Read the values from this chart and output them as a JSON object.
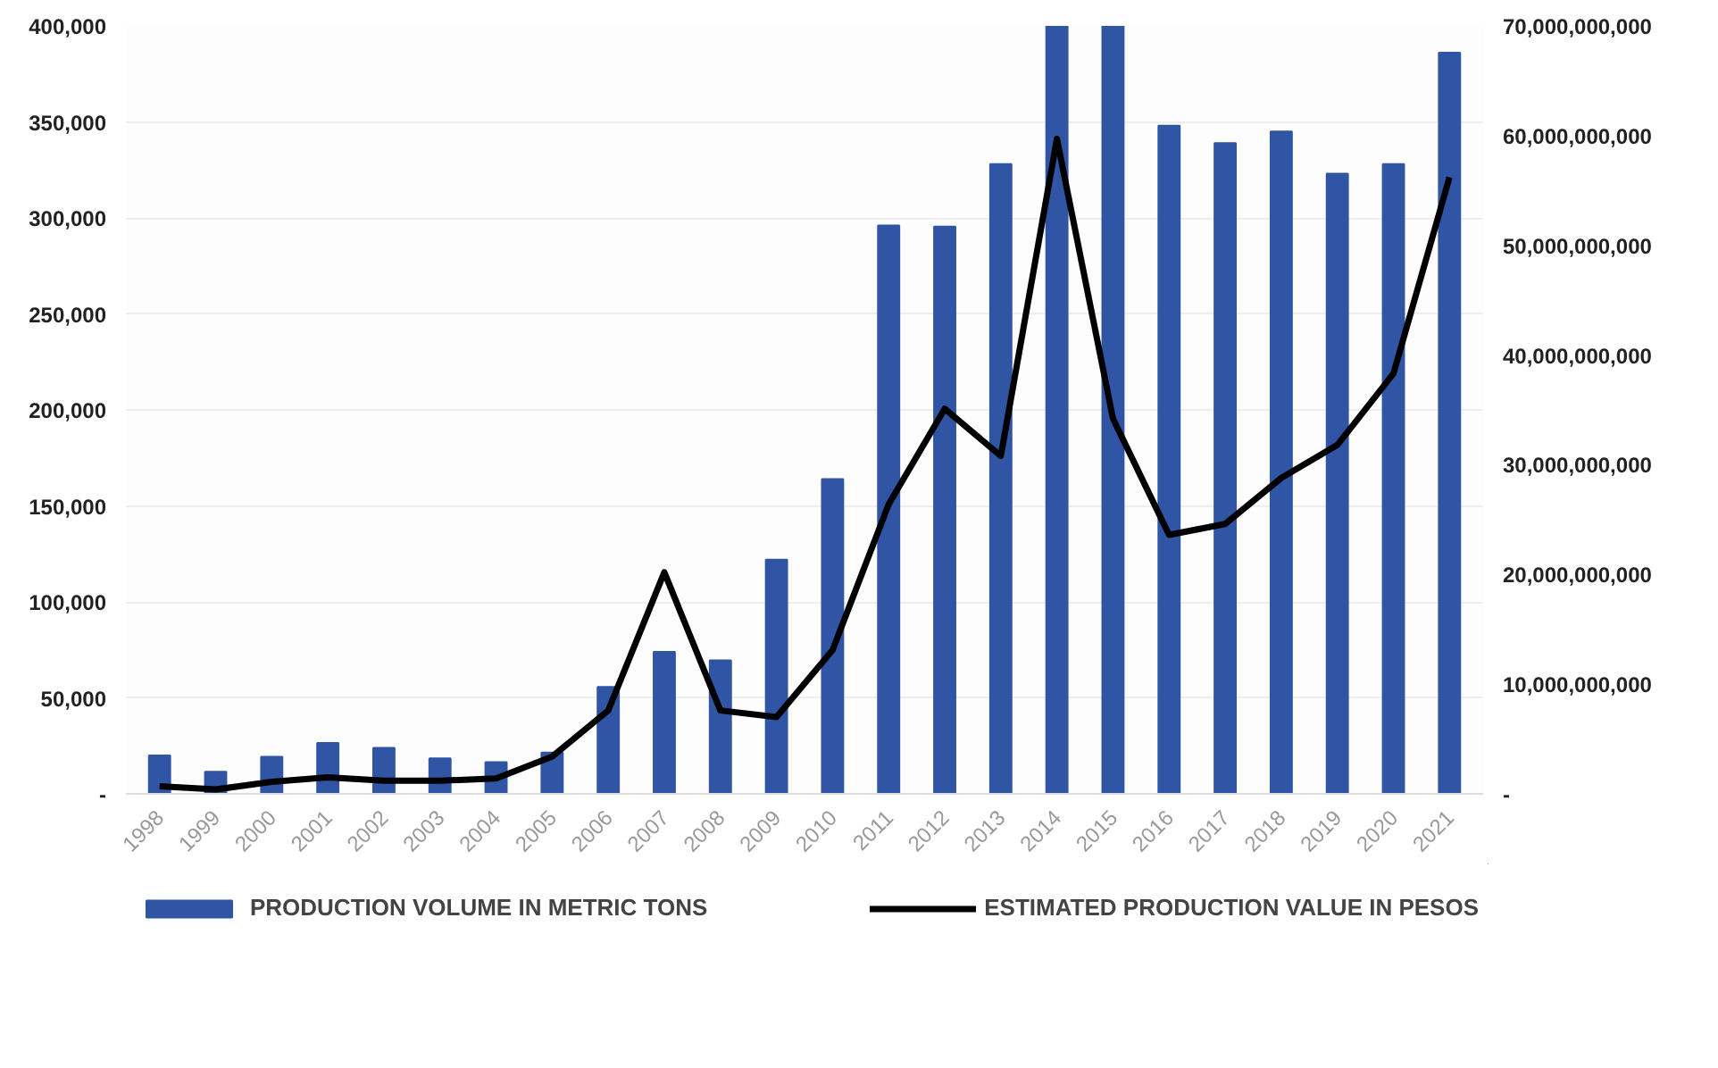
{
  "chart_data": {
    "type": "bar",
    "categories": [
      "1998",
      "1999",
      "2000",
      "2001",
      "2002",
      "2003",
      "2004",
      "2005",
      "2006",
      "2007",
      "2008",
      "2009",
      "2010",
      "2011",
      "2012",
      "2013",
      "2014",
      "2015",
      "2016",
      "2017",
      "2018",
      "2019",
      "2020",
      "2021"
    ],
    "series": [
      {
        "name": "PRODUCTION VOLUME IN METRIC TONS",
        "color": "#2f55a4",
        "values": [
          20000,
          11500,
          19300,
          26500,
          24000,
          18500,
          16500,
          21500,
          55700,
          73900,
          69500,
          122000,
          164000,
          296000,
          295500,
          328000,
          400000,
          400000,
          348000,
          339000,
          345000,
          323000,
          328000,
          386000
        ]
      },
      {
        "name": "ESTIMATED PRODUCTION VALUE IN PESOS",
        "type": "line",
        "axis": "y2",
        "color": "#000000",
        "values": [
          700000000,
          400000000,
          1100000000,
          1500000000,
          1200000000,
          1200000000,
          1400000000,
          3400000000,
          7600000000,
          20200000000,
          7600000000,
          7000000000,
          13100000000,
          26400000000,
          35100000000,
          30800000000,
          59700000000,
          34200000000,
          23600000000,
          24600000000,
          28800000000,
          31800000000,
          38300000000,
          56200000000
        ]
      }
    ],
    "ylim": [
      0,
      400000
    ],
    "yticks": [
      {
        "value": 0,
        "label": "-"
      },
      {
        "value": 50000,
        "label": "50,000"
      },
      {
        "value": 100000,
        "label": "100,000"
      },
      {
        "value": 150000,
        "label": "150,000"
      },
      {
        "value": 200000,
        "label": "200,000"
      },
      {
        "value": 250000,
        "label": "250,000"
      },
      {
        "value": 300000,
        "label": "300,000"
      },
      {
        "value": 350000,
        "label": "350,000"
      },
      {
        "value": 400000,
        "label": "400,000"
      }
    ],
    "y2lim": [
      0,
      70000000000
    ],
    "y2ticks": [
      {
        "value": 0,
        "label": "-"
      },
      {
        "value": 10000000000,
        "label": "10,000,000,000"
      },
      {
        "value": 20000000000,
        "label": "20,000,000,000"
      },
      {
        "value": 30000000000,
        "label": "30,000,000,000"
      },
      {
        "value": 40000000000,
        "label": "40,000,000,000"
      },
      {
        "value": 50000000000,
        "label": "50,000,000,000"
      },
      {
        "value": 60000000000,
        "label": "60,000,000,000"
      },
      {
        "value": 70000000000,
        "label": "70,000,000,000"
      }
    ],
    "grid": "y",
    "legend": "bottom",
    "marker": "none",
    "line_style": "solid"
  }
}
